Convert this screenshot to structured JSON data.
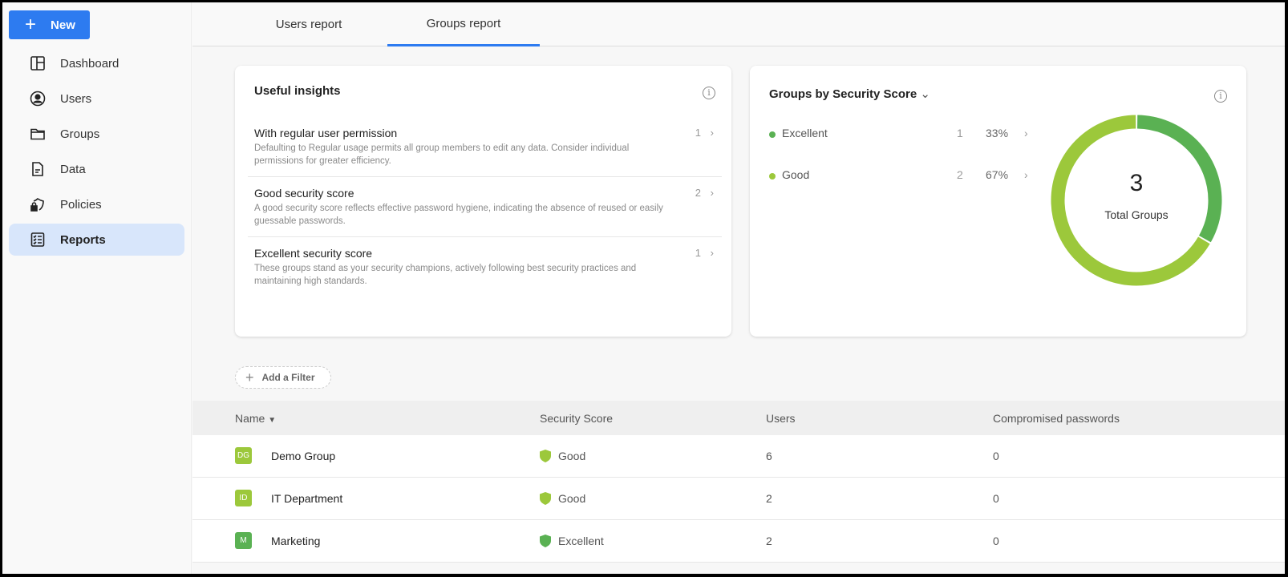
{
  "sidebar": {
    "new_label": "New",
    "items": [
      {
        "label": "Dashboard",
        "icon": "dashboard-icon"
      },
      {
        "label": "Users",
        "icon": "user-circle-icon"
      },
      {
        "label": "Groups",
        "icon": "folder-icon"
      },
      {
        "label": "Data",
        "icon": "document-icon"
      },
      {
        "label": "Policies",
        "icon": "shield-lock-icon"
      },
      {
        "label": "Reports",
        "icon": "checklist-icon",
        "active": true
      }
    ]
  },
  "tabs": [
    {
      "label": "Users report"
    },
    {
      "label": "Groups report",
      "active": true
    }
  ],
  "insights": {
    "title": "Useful insights",
    "items": [
      {
        "title": "With regular user permission",
        "desc": "Defaulting to Regular usage permits all group members to edit any data. Consider individual permissions for greater efficiency.",
        "count": "1"
      },
      {
        "title": "Good security score",
        "desc": "A good security score reflects effective password hygiene, indicating the absence of reused or easily guessable passwords.",
        "count": "2"
      },
      {
        "title": "Excellent security score",
        "desc": "These groups stand as your security champions, actively following best security practices and maintaining high standards.",
        "count": "1"
      }
    ]
  },
  "score_card": {
    "title": "Groups by Security Score",
    "total": "3",
    "total_label": "Total Groups"
  },
  "chart_data": {
    "type": "pie",
    "variant": "donut",
    "categories": [
      "Excellent",
      "Good"
    ],
    "values": [
      1,
      2
    ],
    "percents": [
      "33%",
      "67%"
    ],
    "colors": [
      "#5ab153",
      "#9cc83b"
    ]
  },
  "filter": {
    "label": "Add a Filter"
  },
  "table": {
    "columns": [
      "Name",
      "Security Score",
      "Users",
      "Compromised passwords"
    ],
    "rows": [
      {
        "initials": "DG",
        "name": "Demo Group",
        "score": "Good",
        "users": "6",
        "compromised": "0",
        "color": "#9cc83b"
      },
      {
        "initials": "ID",
        "name": "IT Department",
        "score": "Good",
        "users": "2",
        "compromised": "0",
        "color": "#9cc83b"
      },
      {
        "initials": "M",
        "name": "Marketing",
        "score": "Excellent",
        "users": "2",
        "compromised": "0",
        "color": "#5ab153"
      }
    ]
  }
}
